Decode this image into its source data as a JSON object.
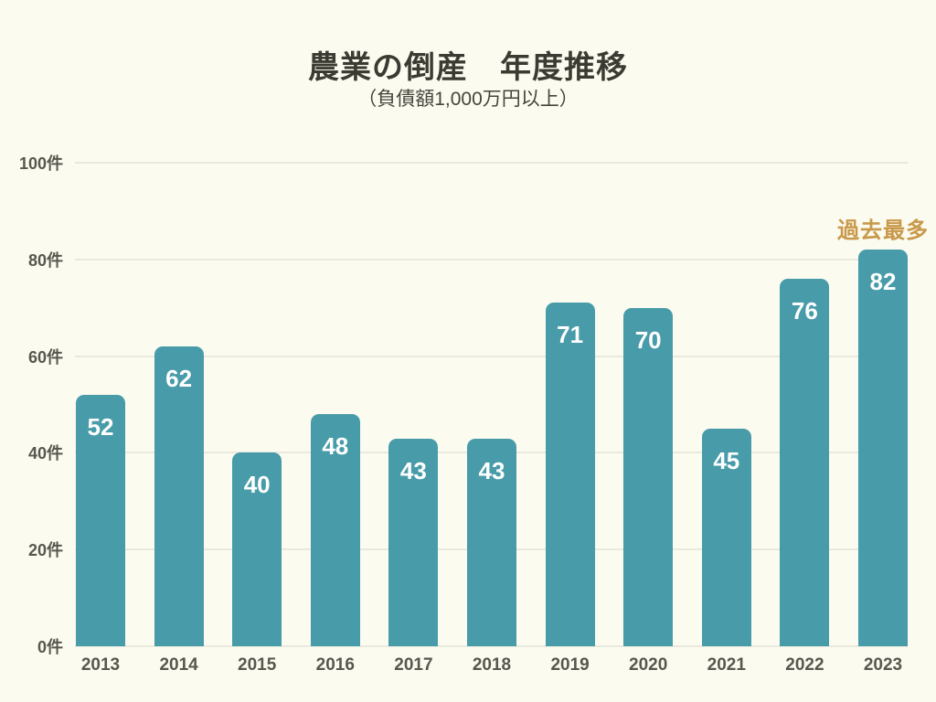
{
  "title": "農業の倒産　年度推移",
  "subtitle": "（負債額1,000万円以上）",
  "chart_data": {
    "type": "bar",
    "title": "農業の倒産　年度推移",
    "subtitle": "（負債額1,000万円以上）",
    "categories": [
      "2013",
      "2014",
      "2015",
      "2016",
      "2017",
      "2018",
      "2019",
      "2020",
      "2021",
      "2022",
      "2023"
    ],
    "values": [
      52,
      62,
      40,
      48,
      43,
      43,
      71,
      70,
      45,
      76,
      82
    ],
    "unit": "件",
    "xlabel": "",
    "ylabel": "",
    "ylim": [
      0,
      100
    ],
    "yticks": [
      0,
      20,
      40,
      60,
      80,
      100
    ],
    "ytick_labels": [
      "0件",
      "20件",
      "40件",
      "60件",
      "80件",
      "100件"
    ],
    "grid": "horizontal",
    "legend": "none",
    "annotation": {
      "text": "過去最多",
      "target": "2023"
    },
    "colors": {
      "bar": "#489BA9",
      "value_label": "#FFFFFF",
      "annotation_text": "#C9994B",
      "background": "#FBFBEF",
      "gridline": "#E9E9DE",
      "axis_text": "#57574F",
      "title_text": "#3B3B33"
    }
  }
}
